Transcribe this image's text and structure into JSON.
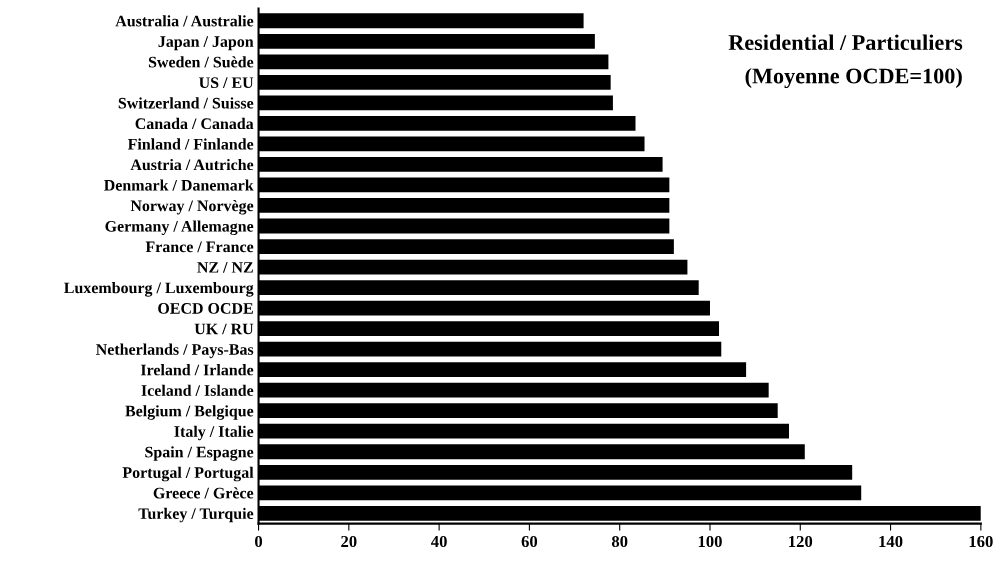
{
  "chart_data": {
    "type": "bar",
    "orientation": "horizontal",
    "title": "Residential / Particuliers",
    "subtitle": "(Moyenne OCDE=100)",
    "categories": [
      "Australia / Australie",
      "Japan / Japon",
      "Sweden / Suède",
      "US / EU",
      "Switzerland / Suisse",
      "Canada / Canada",
      "Finland / Finlande",
      "Austria / Autriche",
      "Denmark / Danemark",
      "Norway / Norvège",
      "Germany / Allemagne",
      "France / France",
      "NZ / NZ",
      "Luxembourg / Luxembourg",
      "OECD OCDE",
      "UK / RU",
      "Netherlands / Pays-Bas",
      "Ireland / Irlande",
      "Iceland / Islande",
      "Belgium / Belgique",
      "Italy / Italie",
      "Spain / Espagne",
      "Portugal / Portugal",
      "Greece / Grèce",
      "Turkey / Turquie"
    ],
    "values": [
      72,
      74.5,
      77.5,
      78,
      78.5,
      83.5,
      85.5,
      89.5,
      91,
      91,
      91,
      92,
      95,
      97.5,
      100,
      102,
      102.5,
      108,
      113,
      115,
      117.5,
      121,
      131.5,
      133.5,
      160
    ],
    "color": "#000000",
    "xlim": [
      0,
      160
    ],
    "xticks": [
      0,
      20,
      40,
      60,
      80,
      100,
      120,
      140,
      160
    ],
    "grid": false,
    "legend": false
  }
}
